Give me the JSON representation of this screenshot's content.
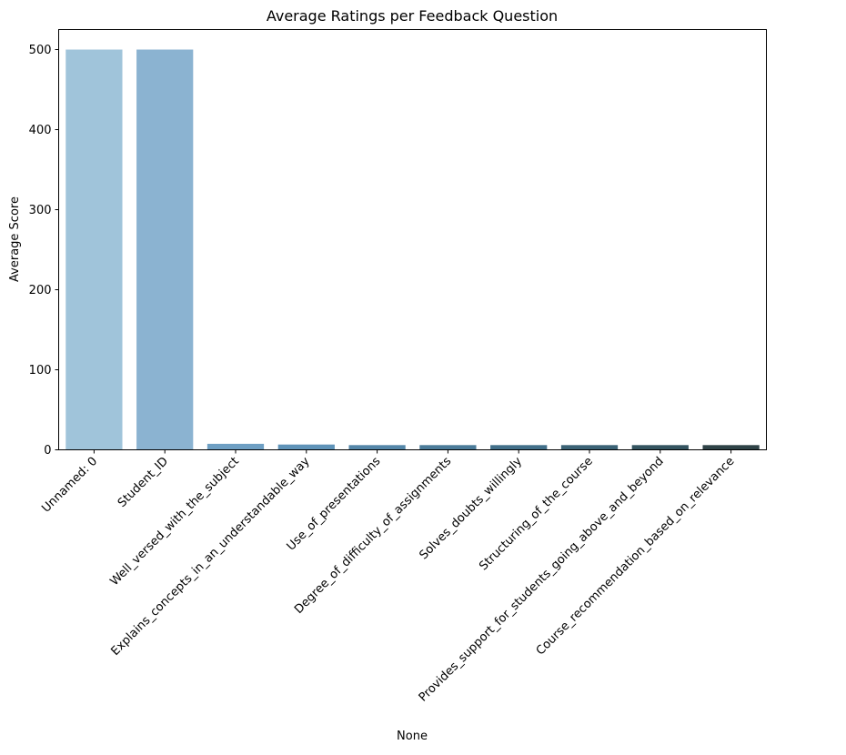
{
  "chart_data": {
    "type": "bar",
    "title": "Average Ratings per Feedback Question",
    "xlabel": "None",
    "ylabel": "Average Score",
    "ylim": [
      0,
      525
    ],
    "yticks": [
      0,
      100,
      200,
      300,
      400,
      500
    ],
    "grid": false,
    "categories": [
      "Unnamed: 0",
      "Student_ID",
      "Well_versed_with_the_subject",
      "Explains_concepts_in_an_understandable_way",
      "Use_of_presentations",
      "Degree_of_difficulty_of_assignments",
      "Solves_doubts_willingly",
      "Structuring_of_the_course",
      "Provides_support_for_students_going_above_and_beyond",
      "Course_recommendation_based_on_relevance"
    ],
    "values": [
      500,
      500,
      7.5,
      6.6,
      5.9,
      5.9,
      5.9,
      5.9,
      5.9,
      5.9
    ],
    "colors": [
      "#a0c4da",
      "#8bb3d1",
      "#6e9fc3",
      "#5f93b8",
      "#5486a8",
      "#4b7b99",
      "#426f89",
      "#3b6275",
      "#345460",
      "#2f4347"
    ]
  }
}
